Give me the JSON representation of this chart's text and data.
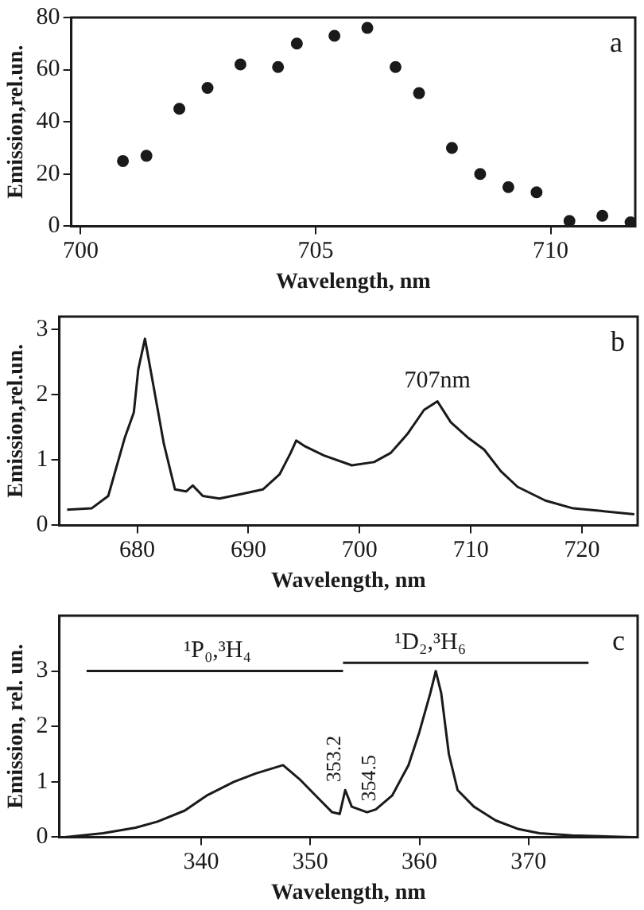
{
  "chart_data": [
    {
      "type": "scatter",
      "xlabel": "Wavelength, nm",
      "ylabel": "Emission,rel.un.",
      "marker": "circle",
      "color": "#1a1a1a",
      "x": [
        700.9,
        701.4,
        702.1,
        702.7,
        703.4,
        704.2,
        704.6,
        705.4,
        706.1,
        706.7,
        707.2,
        707.9,
        708.5,
        709.1,
        709.7,
        710.4,
        711.1,
        711.7
      ],
      "values": [
        25,
        27,
        45,
        53,
        62,
        61,
        70,
        73,
        76,
        61,
        51,
        30,
        20,
        15,
        13,
        2,
        4,
        1.5
      ],
      "xlim": [
        699.8,
        711.8
      ],
      "ylim": [
        0,
        80
      ],
      "xticks": [
        700,
        705,
        710
      ],
      "yticks": [
        0,
        20,
        40,
        60,
        80
      ],
      "annotations": [
        "a"
      ]
    },
    {
      "type": "line",
      "xlabel": "Wavelength, nm",
      "ylabel": "Emission,rel.un.",
      "color": "#1a1a1a",
      "x": [
        673.7,
        675.9,
        677.4,
        678.9,
        679.7,
        680.1,
        680.7,
        681.4,
        682.4,
        683.4,
        684.4,
        685.0,
        685.9,
        687.4,
        689.4,
        691.3,
        692.8,
        693.8,
        694.3,
        695.1,
        696.8,
        699.3,
        701.3,
        702.8,
        704.3,
        705.8,
        707.0,
        708.2,
        709.7,
        711.2,
        712.7,
        714.2,
        716.7,
        719.2,
        721.7,
        724.7
      ],
      "values": [
        0.24,
        0.26,
        0.45,
        1.35,
        1.73,
        2.39,
        2.86,
        2.2,
        1.25,
        0.55,
        0.52,
        0.61,
        0.45,
        0.41,
        0.48,
        0.55,
        0.78,
        1.11,
        1.3,
        1.21,
        1.07,
        0.92,
        0.97,
        1.11,
        1.4,
        1.77,
        1.9,
        1.58,
        1.35,
        1.16,
        0.83,
        0.59,
        0.38,
        0.26,
        0.22,
        0.17
      ],
      "xlim": [
        673,
        725
      ],
      "ylim": [
        0,
        3.2
      ],
      "xticks": [
        680,
        690,
        700,
        710,
        720
      ],
      "yticks": [
        0,
        1,
        2,
        3
      ],
      "annotations": [
        "b",
        {
          "text": "707nm",
          "x": 707,
          "y": 1.9
        }
      ]
    },
    {
      "type": "line",
      "xlabel": "Wavelength, nm",
      "ylabel": "Emission, rel. un.",
      "series": [
        {
          "color": "#1a1a1a",
          "x": [
            327.5,
            331,
            334,
            336,
            338.5,
            340.5,
            343,
            345,
            347.5,
            349,
            350.5,
            352,
            352.7,
            353.2,
            353.8,
            354.5,
            355.2,
            356,
            357.5,
            359,
            360,
            361,
            361.5,
            362,
            362.7,
            363.5,
            365,
            367,
            369,
            371,
            374,
            379.5
          ],
          "values": [
            0,
            0.07,
            0.17,
            0.28,
            0.48,
            0.75,
            1.0,
            1.15,
            1.3,
            1.05,
            0.75,
            0.45,
            0.42,
            0.85,
            0.55,
            0.5,
            0.45,
            0.5,
            0.75,
            1.3,
            1.9,
            2.6,
            3.0,
            2.6,
            1.5,
            0.85,
            0.55,
            0.3,
            0.15,
            0.07,
            0.03,
            0
          ]
        },
        {
          "color": "#1a1a1a",
          "x": [
            329.5,
            353
          ],
          "values": [
            3.0,
            3.0
          ]
        },
        {
          "color": "#1a1a1a",
          "x": [
            353,
            375.5
          ],
          "values": [
            3.15,
            3.15
          ]
        }
      ],
      "xlim": [
        327,
        380
      ],
      "ylim": [
        0,
        4
      ],
      "xticks": [
        340,
        350,
        360,
        370
      ],
      "yticks": [
        0,
        1,
        2,
        3
      ],
      "annotations": [
        "c",
        {
          "text": "¹P₀,³H₄",
          "x": 341.5,
          "y": 3.0
        },
        {
          "text": "¹D₂,³H₆",
          "x": 361,
          "y": 3.15
        },
        {
          "text": "353.2",
          "x": 353.2,
          "y": 0.85
        },
        {
          "text": "354.5",
          "x": 354.5,
          "y": 0.5
        }
      ]
    }
  ]
}
